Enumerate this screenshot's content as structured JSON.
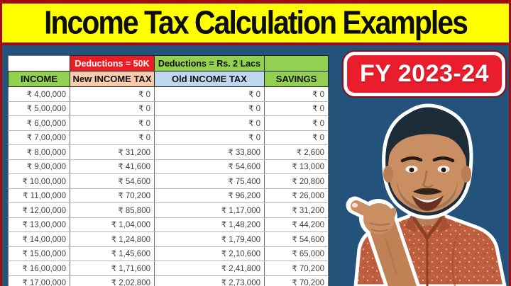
{
  "page": {
    "title": "Income Tax Calculation Examples",
    "badge_label": "FY 2023-24"
  },
  "chart_data": {
    "type": "table",
    "title": "Income Tax Calculation Examples",
    "group_headers": [
      {
        "label": "",
        "over_column": "INCOME"
      },
      {
        "label": "Deductions = 50K",
        "over_column": "New INCOME TAX"
      },
      {
        "label": "Deductions = Rs. 2 Lacs",
        "over_column": "Old INCOME TAX"
      },
      {
        "label": "",
        "over_column": "SAVINGS"
      }
    ],
    "columns": [
      "INCOME",
      "New INCOME TAX",
      "Old INCOME TAX",
      "SAVINGS"
    ],
    "rows": [
      [
        "₹ 4,00,000",
        "₹ 0",
        "₹ 0",
        "₹ 0"
      ],
      [
        "₹ 5,00,000",
        "₹ 0",
        "₹ 0",
        "₹ 0"
      ],
      [
        "₹ 6,00,000",
        "₹ 0",
        "₹ 0",
        "₹ 0"
      ],
      [
        "₹ 7,00,000",
        "₹ 0",
        "₹ 0",
        "₹ 0"
      ],
      [
        "₹ 8,00,000",
        "₹ 31,200",
        "₹ 33,800",
        "₹ 2,600"
      ],
      [
        "₹ 9,00,000",
        "₹ 41,600",
        "₹ 54,600",
        "₹ 13,000"
      ],
      [
        "₹ 10,00,000",
        "₹ 54,600",
        "₹ 75,400",
        "₹ 20,800"
      ],
      [
        "₹ 11,00,000",
        "₹ 70,200",
        "₹ 96,200",
        "₹ 26,000"
      ],
      [
        "₹ 12,00,000",
        "₹ 85,800",
        "₹ 1,17,000",
        "₹ 31,200"
      ],
      [
        "₹ 13,00,000",
        "₹ 1,04,000",
        "₹ 1,48,200",
        "₹ 44,200"
      ],
      [
        "₹ 14,00,000",
        "₹ 1,24,800",
        "₹ 1,79,400",
        "₹ 54,600"
      ],
      [
        "₹ 15,00,000",
        "₹ 1,45,600",
        "₹ 2,10,600",
        "₹ 65,000"
      ],
      [
        "₹ 16,00,000",
        "₹ 1,71,600",
        "₹ 2,41,800",
        "₹ 70,200"
      ],
      [
        "₹ 17,00,000",
        "₹ 2,02,800",
        "₹ 2,73,000",
        "₹ 70,200"
      ]
    ]
  },
  "icons": {
    "presenter_photo": "man-pointing-at-table"
  },
  "colors": {
    "frame_red": "#9e0c10",
    "banner_bg": "#ffff00",
    "title_text": "#0d0d0d",
    "background_blue": "#23527b",
    "deductions_new_bg": "#ec1c24",
    "deductions_old_bg": "#92d050",
    "income_header_bg": "#92d050",
    "new_tax_header_bg": "#f8cbad",
    "old_tax_header_bg": "#bdd7ee",
    "savings_header_bg": "#92d050",
    "badge_bg": "#e91d2c",
    "badge_border": "#ffffff"
  }
}
